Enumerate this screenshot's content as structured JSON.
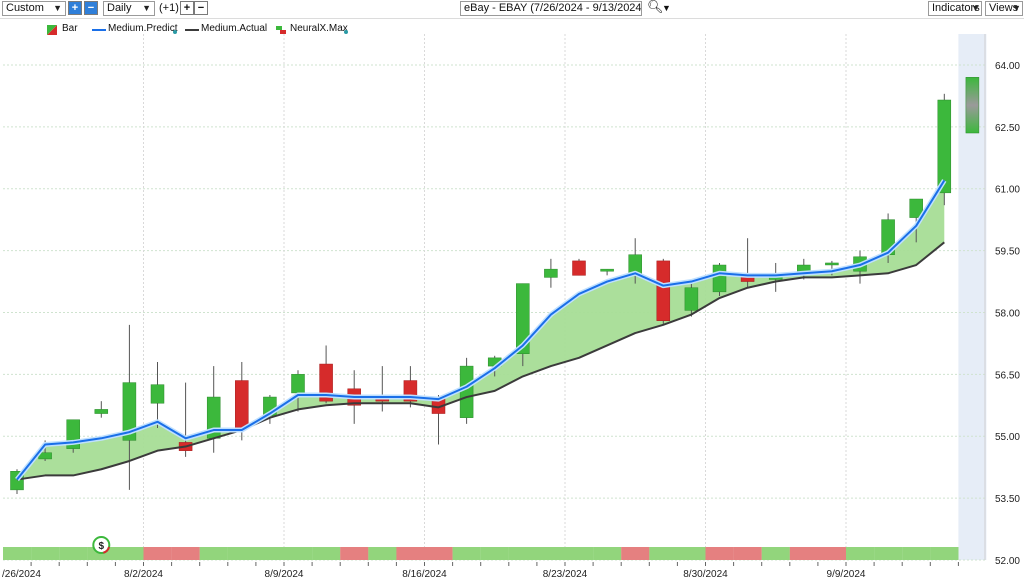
{
  "toolbar": {
    "period_select": "Custom",
    "interval_select": "Daily",
    "shift_label": "(+1)",
    "title": "eBay - EBAY (7/26/2024 - 9/13/2024)",
    "indicators_label": "Indicators",
    "views_label": "Views"
  },
  "legend": {
    "bar": "Bar",
    "medium_predict": "Medium.Predict",
    "medium_actual": "Medium.Actual",
    "neuralx_max": "NeuralX.Max"
  },
  "colors": {
    "up_bar": "#3cb83c",
    "down_bar": "#d62b2b",
    "predict_line": "#1a6fe8",
    "actual_line": "#3b3b3b",
    "fill": "#a6dd96",
    "strip_green": "#92d57c",
    "strip_red": "#e58080",
    "forecast_band": "#e6edf7"
  },
  "chart_data": {
    "type": "candlestick",
    "title": "eBay - EBAY (7/26/2024 - 9/13/2024)",
    "ylim": [
      52.0,
      64.75
    ],
    "y_ticks": [
      "64.00",
      "62.50",
      "61.00",
      "59.50",
      "58.00",
      "56.50",
      "55.00",
      "53.50",
      "52.00"
    ],
    "x_ticks": [
      "7/26/2024",
      "8/2/2024",
      "8/9/2024",
      "8/16/2024",
      "8/23/2024",
      "8/30/2024",
      "9/9/2024"
    ],
    "dates": [
      "7/26",
      "7/29",
      "7/30",
      "7/31",
      "8/1",
      "8/2",
      "8/5",
      "8/6",
      "8/7",
      "8/8",
      "8/9",
      "8/12",
      "8/13",
      "8/14",
      "8/15",
      "8/16",
      "8/19",
      "8/20",
      "8/21",
      "8/22",
      "8/23",
      "8/26",
      "8/27",
      "8/28",
      "8/29",
      "8/30",
      "9/3",
      "9/4",
      "9/5",
      "9/6",
      "9/9",
      "9/10",
      "9/11",
      "9/12",
      "9/13"
    ],
    "candles": [
      {
        "open": 53.7,
        "high": 54.2,
        "low": 53.6,
        "close": 54.15
      },
      {
        "open": 54.45,
        "high": 54.9,
        "low": 54.4,
        "close": 54.6
      },
      {
        "open": 54.7,
        "high": 55.4,
        "low": 54.6,
        "close": 55.4
      },
      {
        "open": 55.55,
        "high": 55.85,
        "low": 55.45,
        "close": 55.65
      },
      {
        "open": 54.9,
        "high": 57.7,
        "low": 53.7,
        "close": 56.3
      },
      {
        "open": 55.8,
        "high": 56.8,
        "low": 55.2,
        "close": 56.25
      },
      {
        "open": 54.85,
        "high": 56.3,
        "low": 54.5,
        "close": 54.65
      },
      {
        "open": 54.95,
        "high": 56.7,
        "low": 54.6,
        "close": 55.95
      },
      {
        "open": 56.35,
        "high": 56.8,
        "low": 54.9,
        "close": 55.2
      },
      {
        "open": 55.5,
        "high": 56.0,
        "low": 55.3,
        "close": 55.95
      },
      {
        "open": 56.05,
        "high": 56.6,
        "low": 55.6,
        "close": 56.5
      },
      {
        "open": 56.75,
        "high": 57.2,
        "low": 55.8,
        "close": 55.85
      },
      {
        "open": 56.15,
        "high": 56.6,
        "low": 55.3,
        "close": 55.75
      },
      {
        "open": 55.95,
        "high": 56.7,
        "low": 55.6,
        "close": 55.85
      },
      {
        "open": 56.35,
        "high": 56.7,
        "low": 55.7,
        "close": 55.85
      },
      {
        "open": 55.95,
        "high": 56.0,
        "low": 54.8,
        "close": 55.55
      },
      {
        "open": 55.45,
        "high": 56.9,
        "low": 55.3,
        "close": 56.7
      },
      {
        "open": 56.7,
        "high": 56.95,
        "low": 56.45,
        "close": 56.9
      },
      {
        "open": 57.0,
        "high": 58.7,
        "low": 56.7,
        "close": 58.7
      },
      {
        "open": 58.85,
        "high": 59.3,
        "low": 58.6,
        "close": 59.05
      },
      {
        "open": 59.25,
        "high": 59.3,
        "low": 58.9,
        "close": 58.9
      },
      {
        "open": 59.0,
        "high": 59.05,
        "low": 58.9,
        "close": 59.05
      },
      {
        "open": 58.95,
        "high": 59.8,
        "low": 58.7,
        "close": 59.4
      },
      {
        "open": 59.25,
        "high": 59.3,
        "low": 57.7,
        "close": 57.8
      },
      {
        "open": 58.05,
        "high": 58.7,
        "low": 57.9,
        "close": 58.6
      },
      {
        "open": 58.5,
        "high": 59.2,
        "low": 58.4,
        "close": 59.15
      },
      {
        "open": 58.95,
        "high": 59.8,
        "low": 58.6,
        "close": 58.75
      },
      {
        "open": 58.8,
        "high": 59.2,
        "low": 58.5,
        "close": 58.95
      },
      {
        "open": 59.0,
        "high": 59.3,
        "low": 58.8,
        "close": 59.15
      },
      {
        "open": 59.2,
        "high": 59.25,
        "low": 58.9,
        "close": 59.2
      },
      {
        "open": 59.0,
        "high": 59.5,
        "low": 58.7,
        "close": 59.35
      },
      {
        "open": 59.4,
        "high": 60.4,
        "low": 59.2,
        "close": 60.25
      },
      {
        "open": 60.3,
        "high": 60.75,
        "low": 59.7,
        "close": 60.75
      },
      {
        "open": 60.9,
        "high": 63.3,
        "low": 60.6,
        "close": 63.15
      },
      {
        "open": null,
        "high": null,
        "low": null,
        "close": null
      }
    ],
    "series": [
      {
        "name": "Medium.Predict",
        "values": [
          53.95,
          54.8,
          54.85,
          54.95,
          55.1,
          55.35,
          54.95,
          55.15,
          55.15,
          55.55,
          56.0,
          56.0,
          55.95,
          55.95,
          55.95,
          55.9,
          56.2,
          56.65,
          57.2,
          57.95,
          58.45,
          58.75,
          58.95,
          58.65,
          58.75,
          58.95,
          58.9,
          58.9,
          58.95,
          59.0,
          59.15,
          59.45,
          60.1,
          61.2,
          null
        ]
      },
      {
        "name": "Medium.Actual",
        "values": [
          53.95,
          54.05,
          54.05,
          54.2,
          54.4,
          54.65,
          54.75,
          54.95,
          55.15,
          55.45,
          55.65,
          55.75,
          55.8,
          55.8,
          55.8,
          55.7,
          55.95,
          56.1,
          56.45,
          56.7,
          56.9,
          57.2,
          57.5,
          57.7,
          57.95,
          58.35,
          58.6,
          58.75,
          58.85,
          58.85,
          58.9,
          58.95,
          59.15,
          59.7,
          null
        ]
      }
    ],
    "neuralx_max_bar": {
      "low": 62.35,
      "high": 63.7
    },
    "signal_strip": [
      "g",
      "g",
      "g",
      "g",
      "g",
      "r",
      "r",
      "g",
      "g",
      "g",
      "g",
      "g",
      "r",
      "g",
      "r",
      "r",
      "g",
      "g",
      "g",
      "g",
      "g",
      "g",
      "r",
      "g",
      "g",
      "r",
      "r",
      "g",
      "r",
      "r",
      "g",
      "g",
      "g",
      "g"
    ],
    "signal_icon": "$",
    "grid": true
  }
}
